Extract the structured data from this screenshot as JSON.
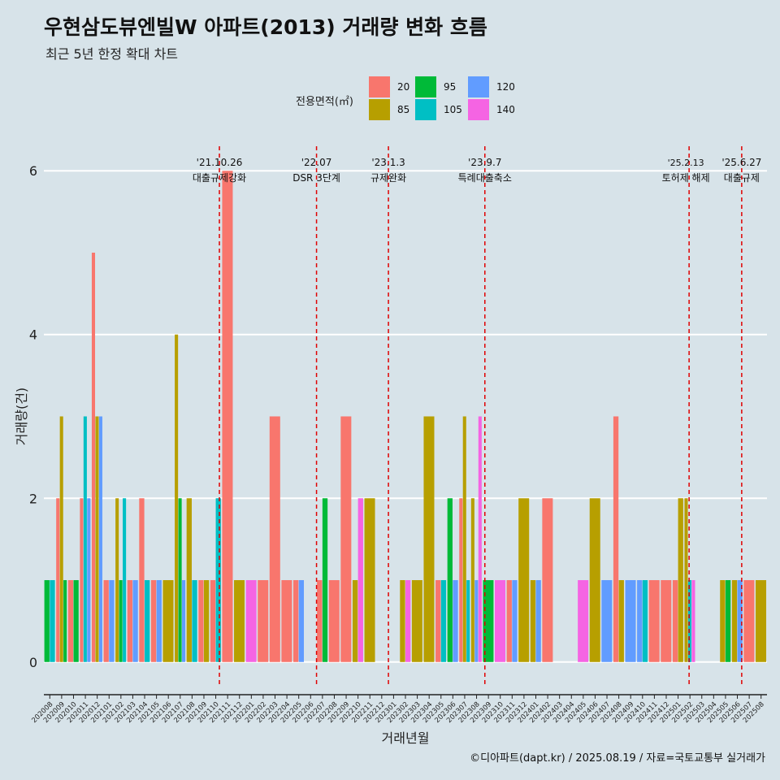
{
  "title": "우현삼도뷰엔빌W 아파트(2013) 거래량 변화 흐름",
  "subtitle": "최근 5년 한정 확대 차트",
  "caption": "©디아파트(dapt.kr) / 2025.08.19 / 자료=국토교통부 실거래가",
  "legend_title": "전용면적(㎡)",
  "colors": {
    "20": "#f8766d",
    "85": "#b79f00",
    "95": "#00ba38",
    "105": "#00bfc4",
    "120": "#619cff",
    "140": "#f564e3",
    "event_line": "#e00000",
    "grid": "#ffffff",
    "axis": "#222222"
  },
  "chart_data": {
    "type": "bar",
    "title": "우현삼도뷰엔빌W 아파트(2013) 거래량 변화 흐름",
    "subtitle": "최근 5년 한정 확대 차트",
    "xlabel": "거래년월",
    "ylabel": "거래량(건)",
    "ylim": [
      -0.3,
      6.3
    ],
    "yticks": [
      0,
      2,
      4,
      6
    ],
    "grid": true,
    "legend_position": "top",
    "series_names": [
      "20",
      "85",
      "95",
      "105",
      "120",
      "140"
    ],
    "categories": [
      "202008",
      "202009",
      "202010",
      "202011",
      "202012",
      "202101",
      "202102",
      "202103",
      "202104",
      "202105",
      "202106",
      "202107",
      "202108",
      "202109",
      "202110",
      "202111",
      "202112",
      "202201",
      "202202",
      "202203",
      "202204",
      "202205",
      "202206",
      "202207",
      "202208",
      "202209",
      "202210",
      "202211",
      "202212",
      "202301",
      "202302",
      "202303",
      "202304",
      "202305",
      "202306",
      "202307",
      "202308",
      "202309",
      "202310",
      "202311",
      "202312",
      "202401",
      "202402",
      "202403",
      "202404",
      "202405",
      "202406",
      "202407",
      "202408",
      "202409",
      "202410",
      "202411",
      "202412",
      "202501",
      "202502",
      "202503",
      "202504",
      "202505",
      "202506",
      "202507",
      "202508"
    ],
    "bars": {
      "202008": [
        {
          "s": "95",
          "v": 1
        },
        {
          "s": "105",
          "v": 1
        }
      ],
      "202009": [
        {
          "s": "20",
          "v": 2
        },
        {
          "s": "85",
          "v": 3
        },
        {
          "s": "95",
          "v": 1
        }
      ],
      "202010": [
        {
          "s": "20",
          "v": 1
        },
        {
          "s": "95",
          "v": 1
        }
      ],
      "202011": [
        {
          "s": "20",
          "v": 2
        },
        {
          "s": "105",
          "v": 3
        },
        {
          "s": "120",
          "v": 2
        }
      ],
      "202012": [
        {
          "s": "20",
          "v": 5
        },
        {
          "s": "85",
          "v": 3
        },
        {
          "s": "120",
          "v": 3
        }
      ],
      "202101": [
        {
          "s": "20",
          "v": 1
        },
        {
          "s": "120",
          "v": 1
        }
      ],
      "202102": [
        {
          "s": "85",
          "v": 2
        },
        {
          "s": "95",
          "v": 1
        },
        {
          "s": "105",
          "v": 2
        }
      ],
      "202103": [
        {
          "s": "20",
          "v": 1
        },
        {
          "s": "120",
          "v": 1
        }
      ],
      "202104": [
        {
          "s": "20",
          "v": 2
        },
        {
          "s": "105",
          "v": 1
        }
      ],
      "202105": [
        {
          "s": "20",
          "v": 1
        },
        {
          "s": "120",
          "v": 1
        }
      ],
      "202106": [
        {
          "s": "85",
          "v": 1
        }
      ],
      "202107": [
        {
          "s": "85",
          "v": 4
        },
        {
          "s": "95",
          "v": 2
        },
        {
          "s": "120",
          "v": 1
        }
      ],
      "202108": [
        {
          "s": "85",
          "v": 2
        },
        {
          "s": "105",
          "v": 1
        }
      ],
      "202109": [
        {
          "s": "20",
          "v": 1
        },
        {
          "s": "85",
          "v": 1
        }
      ],
      "202110": [
        {
          "s": "20",
          "v": 1
        },
        {
          "s": "105",
          "v": 2
        }
      ],
      "202111": [
        {
          "s": "20",
          "v": 6
        }
      ],
      "202112": [
        {
          "s": "85",
          "v": 1
        }
      ],
      "202201": [
        {
          "s": "140",
          "v": 1
        }
      ],
      "202202": [
        {
          "s": "20",
          "v": 1
        }
      ],
      "202203": [
        {
          "s": "20",
          "v": 3
        }
      ],
      "202204": [
        {
          "s": "20",
          "v": 1
        }
      ],
      "202205": [
        {
          "s": "20",
          "v": 1
        },
        {
          "s": "120",
          "v": 1
        }
      ],
      "202206": [],
      "202207": [
        {
          "s": "20",
          "v": 1
        },
        {
          "s": "95",
          "v": 2
        }
      ],
      "202208": [
        {
          "s": "20",
          "v": 1
        }
      ],
      "202209": [
        {
          "s": "20",
          "v": 3
        }
      ],
      "202210": [
        {
          "s": "85",
          "v": 1
        },
        {
          "s": "140",
          "v": 2
        }
      ],
      "202211": [
        {
          "s": "85",
          "v": 2
        }
      ],
      "202212": [],
      "202301": [],
      "202302": [
        {
          "s": "85",
          "v": 1
        },
        {
          "s": "140",
          "v": 1
        }
      ],
      "202303": [
        {
          "s": "85",
          "v": 1
        }
      ],
      "202304": [
        {
          "s": "85",
          "v": 3
        }
      ],
      "202305": [
        {
          "s": "20",
          "v": 1
        },
        {
          "s": "105",
          "v": 1
        }
      ],
      "202306": [
        {
          "s": "95",
          "v": 2
        },
        {
          "s": "120",
          "v": 1
        }
      ],
      "202307": [
        {
          "s": "20",
          "v": 2
        },
        {
          "s": "85",
          "v": 3
        },
        {
          "s": "105",
          "v": 1
        }
      ],
      "202308": [
        {
          "s": "85",
          "v": 2
        },
        {
          "s": "120",
          "v": 1
        },
        {
          "s": "140",
          "v": 3
        }
      ],
      "202309": [
        {
          "s": "95",
          "v": 1
        }
      ],
      "202310": [
        {
          "s": "140",
          "v": 1
        }
      ],
      "202311": [
        {
          "s": "20",
          "v": 1
        },
        {
          "s": "120",
          "v": 1
        }
      ],
      "202312": [
        {
          "s": "85",
          "v": 2
        }
      ],
      "202401": [
        {
          "s": "85",
          "v": 1
        },
        {
          "s": "120",
          "v": 1
        }
      ],
      "202402": [
        {
          "s": "20",
          "v": 2
        }
      ],
      "202403": [],
      "202404": [],
      "202405": [
        {
          "s": "140",
          "v": 1
        }
      ],
      "202406": [
        {
          "s": "85",
          "v": 2
        }
      ],
      "202407": [
        {
          "s": "120",
          "v": 1
        }
      ],
      "202408": [
        {
          "s": "20",
          "v": 3
        },
        {
          "s": "85",
          "v": 1
        }
      ],
      "202409": [
        {
          "s": "120",
          "v": 1
        }
      ],
      "202410": [
        {
          "s": "120",
          "v": 1
        },
        {
          "s": "105",
          "v": 1
        }
      ],
      "202411": [
        {
          "s": "20",
          "v": 1
        }
      ],
      "202412": [
        {
          "s": "20",
          "v": 1
        }
      ],
      "202501": [
        {
          "s": "20",
          "v": 1
        },
        {
          "s": "85",
          "v": 2
        }
      ],
      "202502": [
        {
          "s": "85",
          "v": 2
        },
        {
          "s": "105",
          "v": 1
        },
        {
          "s": "140",
          "v": 1
        }
      ],
      "202503": [],
      "202504": [],
      "202505": [
        {
          "s": "85",
          "v": 1
        },
        {
          "s": "95",
          "v": 1
        }
      ],
      "202506": [
        {
          "s": "85",
          "v": 1
        },
        {
          "s": "120",
          "v": 1
        }
      ],
      "202507": [
        {
          "s": "20",
          "v": 1
        }
      ],
      "202508": [
        {
          "s": "85",
          "v": 1
        }
      ]
    },
    "events": [
      {
        "date": "2021-10-26",
        "label1": "'21.10.26",
        "label2": "대출규제강화"
      },
      {
        "date": "2022-07-01",
        "label1": "'22.07",
        "label2": "DSR 3단계"
      },
      {
        "date": "2023-01-03",
        "label1": "'23.1.3",
        "label2": "규제완화"
      },
      {
        "date": "2023-09-07",
        "label1": "'23.9.7",
        "label2": "특례대출축소"
      },
      {
        "date": "2025-02-13",
        "label1": "'25.2.13",
        "label2": "토허제 해제"
      },
      {
        "date": "2025-06-27",
        "label1": "'25.6.27",
        "label2": "대출규제"
      }
    ]
  }
}
